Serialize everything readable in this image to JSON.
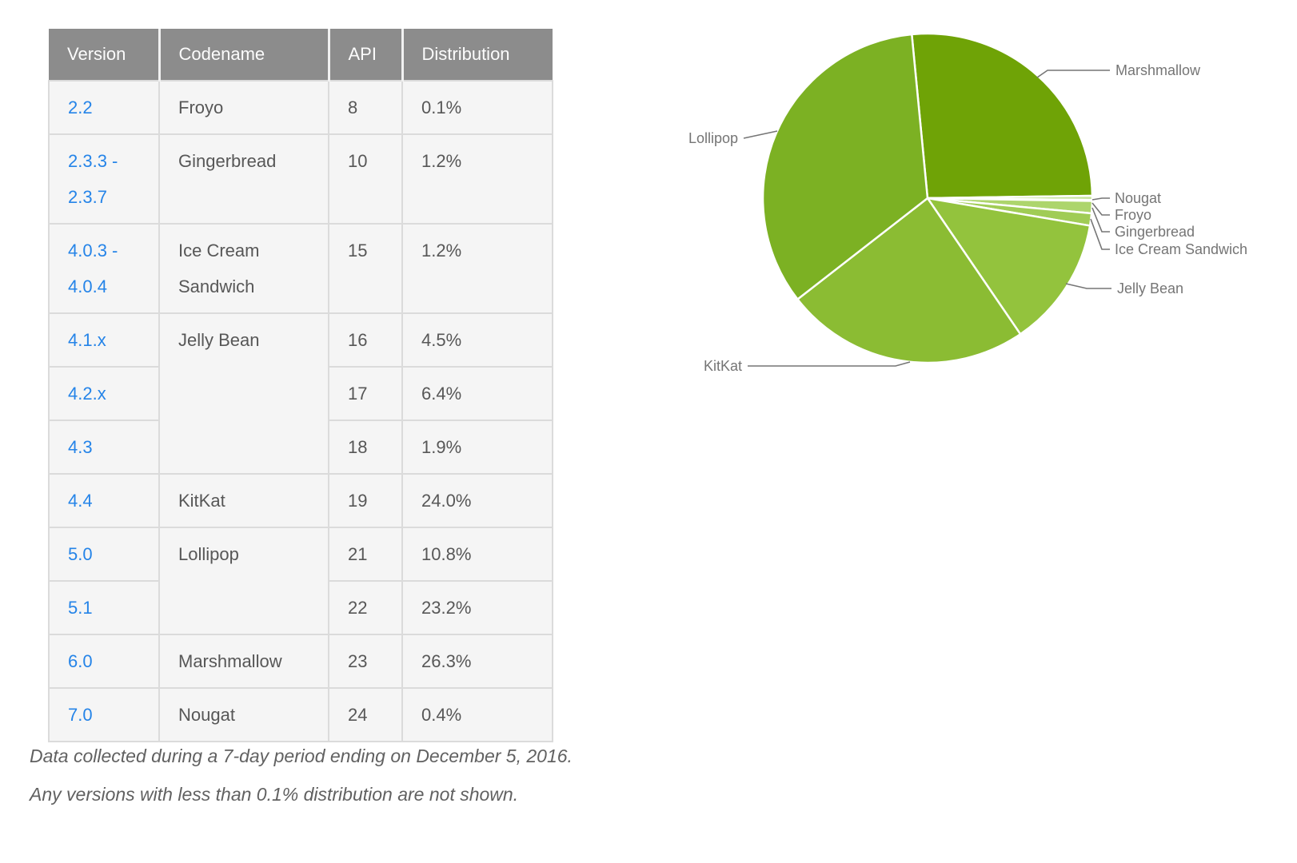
{
  "table": {
    "headers": [
      "Version",
      "Codename",
      "API",
      "Distribution"
    ],
    "header_bg": "#8C8C8C",
    "row_bg": "#F5F5F5",
    "link_color": "#2584E8",
    "rows": [
      {
        "version": "2.2",
        "codename": "Froyo",
        "api": "8",
        "distribution": "0.1%"
      },
      {
        "version": "2.3.3 - 2.3.7",
        "codename": "Gingerbread",
        "api": "10",
        "distribution": "1.2%"
      },
      {
        "version": "4.0.3 - 4.0.4",
        "codename": "Ice Cream Sandwich",
        "api": "15",
        "distribution": "1.2%"
      },
      {
        "version": "4.1.x",
        "codename": "Jelly Bean",
        "api": "16",
        "distribution": "4.5%"
      },
      {
        "version": "4.2.x",
        "codename": "Jelly Bean",
        "api": "17",
        "distribution": "6.4%"
      },
      {
        "version": "4.3",
        "codename": "Jelly Bean",
        "api": "18",
        "distribution": "1.9%"
      },
      {
        "version": "4.4",
        "codename": "KitKat",
        "api": "19",
        "distribution": "24.0%"
      },
      {
        "version": "5.0",
        "codename": "Lollipop",
        "api": "21",
        "distribution": "10.8%"
      },
      {
        "version": "5.1",
        "codename": "Lollipop",
        "api": "22",
        "distribution": "23.2%"
      },
      {
        "version": "6.0",
        "codename": "Marshmallow",
        "api": "23",
        "distribution": "26.3%"
      },
      {
        "version": "7.0",
        "codename": "Nougat",
        "api": "24",
        "distribution": "0.4%"
      }
    ]
  },
  "chart_data": {
    "type": "pie",
    "unit": "%",
    "start_angle_deg": -5.5,
    "direction": "clockwise",
    "stroke": "#FFFFFF",
    "label_color": "#757575",
    "legend_position": "callout-labels",
    "series": [
      {
        "name": "Marshmallow",
        "value": 26.3,
        "color": "#6FA306"
      },
      {
        "name": "Nougat",
        "value": 0.4,
        "color": "#C7E39B"
      },
      {
        "name": "Froyo",
        "value": 0.1,
        "color": "#BFDD8B"
      },
      {
        "name": "Gingerbread",
        "value": 1.2,
        "color": "#ADD56C"
      },
      {
        "name": "Ice Cream Sandwich",
        "value": 1.2,
        "color": "#A0CC55"
      },
      {
        "name": "Jelly Bean",
        "value": 12.8,
        "color": "#93C33D"
      },
      {
        "name": "KitKat",
        "value": 24.0,
        "color": "#8BBC33"
      },
      {
        "name": "Lollipop",
        "value": 34.0,
        "color": "#7CB123"
      }
    ]
  },
  "footer": {
    "line1": "Data collected during a 7-day period ending on December 5, 2016.",
    "line2": "Any versions with less than 0.1% distribution are not shown."
  }
}
